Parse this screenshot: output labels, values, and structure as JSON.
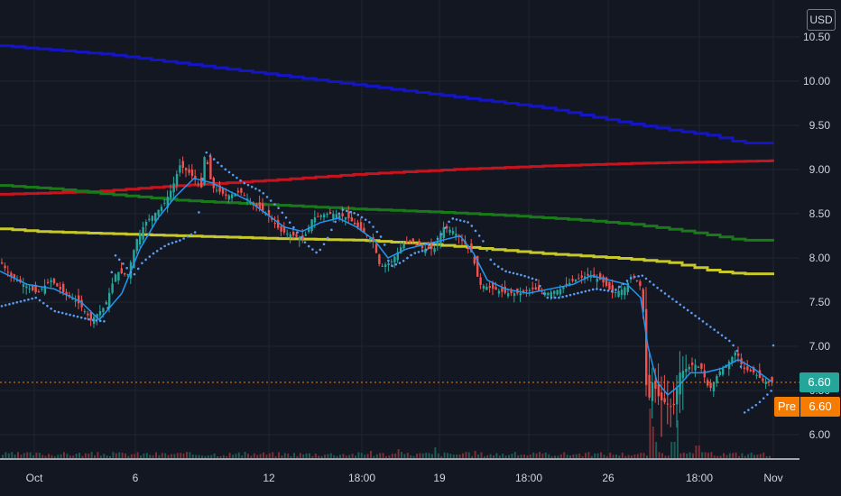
{
  "chart_data": {
    "type": "candlestick",
    "currency": "USD",
    "price_axis": {
      "ticks": [
        "6.00",
        "6.50",
        "7.00",
        "7.50",
        "8.00",
        "8.50",
        "9.00",
        "9.50",
        "10.00",
        "10.50"
      ],
      "range": [
        5.75,
        10.55
      ]
    },
    "time_axis": {
      "ticks": [
        "Oct",
        "6",
        "12",
        "18:00",
        "19",
        "18:00",
        "26",
        "18:00",
        "Nov"
      ]
    },
    "last_price_label": "6.60",
    "pre_market": {
      "label": "Pre",
      "value": "6.60"
    },
    "colors": {
      "up": "#26a69a",
      "down": "#ef5350",
      "ema": "#2196f3",
      "sar": "#5b9cf0",
      "blue_ma": "#1515c8",
      "red_ma": "#c8141e",
      "green_ma": "#1a7a1a",
      "yellow_ma": "#c8c82a",
      "badge_teal": "#26a69a",
      "badge_orange": "#f57c00",
      "bg": "#131722"
    },
    "price_path": [
      [
        0,
        7.95
      ],
      [
        10,
        7.8
      ],
      [
        25,
        7.7
      ],
      [
        40,
        7.6
      ],
      [
        55,
        7.75
      ],
      [
        70,
        7.6
      ],
      [
        85,
        7.5
      ],
      [
        100,
        7.3
      ],
      [
        115,
        7.45
      ],
      [
        128,
        7.85
      ],
      [
        140,
        7.8
      ],
      [
        150,
        8.2
      ],
      [
        160,
        8.4
      ],
      [
        170,
        8.5
      ],
      [
        180,
        8.6
      ],
      [
        190,
        8.8
      ],
      [
        198,
        9.05
      ],
      [
        210,
        8.95
      ],
      [
        222,
        8.8
      ],
      [
        226,
        9.2
      ],
      [
        234,
        8.8
      ],
      [
        250,
        8.7
      ],
      [
        265,
        8.75
      ],
      [
        280,
        8.6
      ],
      [
        295,
        8.5
      ],
      [
        310,
        8.3
      ],
      [
        325,
        8.25
      ],
      [
        335,
        8.2
      ],
      [
        345,
        8.45
      ],
      [
        360,
        8.5
      ],
      [
        370,
        8.5
      ],
      [
        385,
        8.45
      ],
      [
        400,
        8.3
      ],
      [
        412,
        8.2
      ],
      [
        420,
        7.9
      ],
      [
        432,
        7.95
      ],
      [
        445,
        8.15
      ],
      [
        455,
        8.2
      ],
      [
        468,
        8.1
      ],
      [
        480,
        8.1
      ],
      [
        490,
        8.35
      ],
      [
        502,
        8.3
      ],
      [
        515,
        8.15
      ],
      [
        522,
        8.05
      ],
      [
        530,
        7.7
      ],
      [
        545,
        7.65
      ],
      [
        560,
        7.6
      ],
      [
        575,
        7.6
      ],
      [
        590,
        7.65
      ],
      [
        605,
        7.6
      ],
      [
        620,
        7.65
      ],
      [
        635,
        7.75
      ],
      [
        650,
        7.8
      ],
      [
        665,
        7.75
      ],
      [
        678,
        7.6
      ],
      [
        690,
        7.65
      ],
      [
        700,
        7.8
      ],
      [
        708,
        7.7
      ],
      [
        712,
        7.35
      ],
      [
        716,
        6.3
      ],
      [
        722,
        6.6
      ],
      [
        730,
        6.4
      ],
      [
        738,
        6.35
      ],
      [
        745,
        6.3
      ],
      [
        752,
        6.7
      ],
      [
        760,
        6.75
      ],
      [
        768,
        6.8
      ],
      [
        776,
        6.75
      ],
      [
        785,
        6.5
      ],
      [
        795,
        6.7
      ],
      [
        805,
        6.8
      ],
      [
        815,
        6.95
      ],
      [
        822,
        6.75
      ],
      [
        835,
        6.7
      ],
      [
        845,
        6.6
      ],
      [
        855,
        6.6
      ]
    ],
    "ema_path": [
      [
        0,
        7.85
      ],
      [
        30,
        7.7
      ],
      [
        60,
        7.65
      ],
      [
        90,
        7.5
      ],
      [
        110,
        7.3
      ],
      [
        135,
        7.6
      ],
      [
        155,
        8.1
      ],
      [
        175,
        8.45
      ],
      [
        195,
        8.7
      ],
      [
        215,
        8.9
      ],
      [
        235,
        8.85
      ],
      [
        255,
        8.75
      ],
      [
        275,
        8.65
      ],
      [
        295,
        8.5
      ],
      [
        315,
        8.35
      ],
      [
        335,
        8.3
      ],
      [
        355,
        8.4
      ],
      [
        375,
        8.45
      ],
      [
        395,
        8.35
      ],
      [
        415,
        8.2
      ],
      [
        430,
        8.0
      ],
      [
        450,
        8.1
      ],
      [
        470,
        8.15
      ],
      [
        490,
        8.2
      ],
      [
        510,
        8.25
      ],
      [
        525,
        8.05
      ],
      [
        540,
        7.75
      ],
      [
        560,
        7.65
      ],
      [
        585,
        7.6
      ],
      [
        610,
        7.65
      ],
      [
        635,
        7.7
      ],
      [
        655,
        7.8
      ],
      [
        675,
        7.75
      ],
      [
        695,
        7.7
      ],
      [
        710,
        7.55
      ],
      [
        718,
        7.0
      ],
      [
        728,
        6.6
      ],
      [
        740,
        6.45
      ],
      [
        752,
        6.55
      ],
      [
        765,
        6.7
      ],
      [
        780,
        6.7
      ],
      [
        800,
        6.75
      ],
      [
        818,
        6.85
      ],
      [
        835,
        6.75
      ],
      [
        855,
        6.6
      ]
    ],
    "sar_path": [
      [
        0,
        7.45
      ],
      [
        20,
        7.5
      ],
      [
        40,
        7.55
      ],
      [
        60,
        7.4
      ],
      [
        80,
        7.35
      ],
      [
        100,
        7.3
      ],
      [
        118,
        7.28
      ],
      [
        126,
        8.05
      ],
      [
        135,
        7.95
      ],
      [
        148,
        7.8
      ],
      [
        158,
        7.95
      ],
      [
        170,
        8.05
      ],
      [
        185,
        8.15
      ],
      [
        200,
        8.2
      ],
      [
        218,
        8.3
      ],
      [
        228,
        9.2
      ],
      [
        250,
        9.0
      ],
      [
        270,
        8.85
      ],
      [
        290,
        8.75
      ],
      [
        310,
        8.55
      ],
      [
        325,
        8.35
      ],
      [
        340,
        8.15
      ],
      [
        352,
        8.05
      ],
      [
        362,
        8.2
      ],
      [
        378,
        8.55
      ],
      [
        395,
        8.5
      ],
      [
        410,
        8.4
      ],
      [
        425,
        8.2
      ],
      [
        432,
        7.9
      ],
      [
        445,
        7.95
      ],
      [
        458,
        8.05
      ],
      [
        475,
        8.1
      ],
      [
        488,
        8.25
      ],
      [
        500,
        8.45
      ],
      [
        520,
        8.4
      ],
      [
        535,
        8.2
      ],
      [
        545,
        7.95
      ],
      [
        560,
        7.85
      ],
      [
        580,
        7.8
      ],
      [
        595,
        7.75
      ],
      [
        605,
        7.55
      ],
      [
        620,
        7.55
      ],
      [
        640,
        7.6
      ],
      [
        660,
        7.65
      ],
      [
        680,
        7.62
      ],
      [
        700,
        7.78
      ],
      [
        712,
        7.8
      ],
      [
        730,
        7.65
      ],
      [
        750,
        7.5
      ],
      [
        770,
        7.35
      ],
      [
        790,
        7.2
      ],
      [
        810,
        7.05
      ],
      [
        820,
        6.9
      ],
      [
        825,
        6.25
      ],
      [
        840,
        6.35
      ],
      [
        855,
        6.5
      ]
    ],
    "blue_ma_path": [
      [
        0,
        10.4
      ],
      [
        60,
        10.35
      ],
      [
        120,
        10.3
      ],
      [
        200,
        10.2
      ],
      [
        280,
        10.1
      ],
      [
        360,
        10.0
      ],
      [
        440,
        9.9
      ],
      [
        520,
        9.8
      ],
      [
        600,
        9.7
      ],
      [
        680,
        9.55
      ],
      [
        740,
        9.45
      ],
      [
        790,
        9.38
      ],
      [
        820,
        9.3
      ],
      [
        858,
        9.3
      ]
    ],
    "red_ma_path": [
      [
        0,
        8.72
      ],
      [
        100,
        8.75
      ],
      [
        200,
        8.82
      ],
      [
        300,
        8.88
      ],
      [
        400,
        8.95
      ],
      [
        500,
        9.0
      ],
      [
        600,
        9.04
      ],
      [
        700,
        9.07
      ],
      [
        800,
        9.09
      ],
      [
        858,
        9.1
      ]
    ],
    "green_ma_path": [
      [
        0,
        8.82
      ],
      [
        60,
        8.78
      ],
      [
        120,
        8.72
      ],
      [
        200,
        8.65
      ],
      [
        300,
        8.6
      ],
      [
        400,
        8.55
      ],
      [
        480,
        8.52
      ],
      [
        560,
        8.48
      ],
      [
        640,
        8.43
      ],
      [
        700,
        8.38
      ],
      [
        760,
        8.3
      ],
      [
        820,
        8.2
      ],
      [
        858,
        8.2
      ]
    ],
    "yellow_ma_path": [
      [
        0,
        8.33
      ],
      [
        40,
        8.3
      ],
      [
        100,
        8.28
      ],
      [
        200,
        8.25
      ],
      [
        300,
        8.22
      ],
      [
        400,
        8.2
      ],
      [
        480,
        8.15
      ],
      [
        540,
        8.1
      ],
      [
        600,
        8.05
      ],
      [
        680,
        8.0
      ],
      [
        740,
        7.95
      ],
      [
        790,
        7.85
      ],
      [
        820,
        7.82
      ],
      [
        858,
        7.82
      ]
    ],
    "volume_spikes": [
      [
        718,
        55
      ],
      [
        722,
        35
      ],
      [
        726,
        18
      ],
      [
        748,
        42
      ],
      [
        745,
        18
      ],
      [
        772,
        14
      ],
      [
        410,
        8
      ],
      [
        440,
        10
      ],
      [
        480,
        12
      ],
      [
        525,
        8
      ]
    ]
  }
}
